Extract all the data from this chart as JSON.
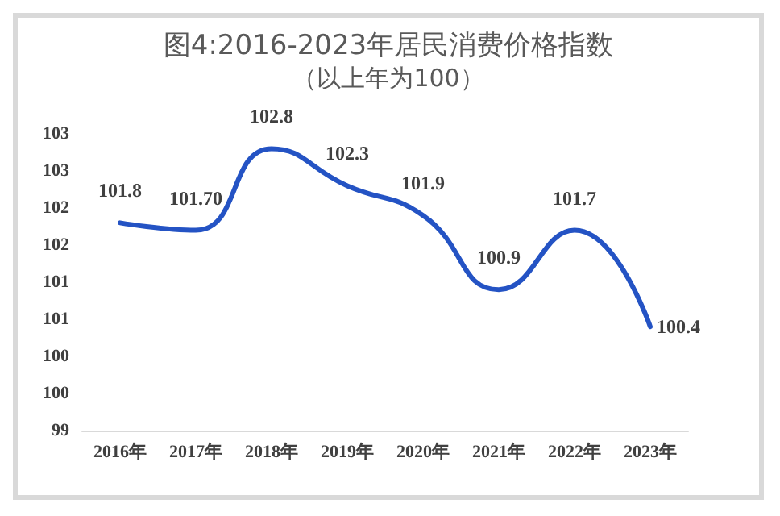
{
  "chart_data": {
    "type": "line",
    "title": "图4:2016-2023年居民消费价格指数",
    "subtitle": "（以上年为100）",
    "categories": [
      "2016年",
      "2017年",
      "2018年",
      "2019年",
      "2020年",
      "2021年",
      "2022年",
      "2023年"
    ],
    "series": [
      {
        "color": "#2453c4",
        "values": [
          101.8,
          101.7,
          102.8,
          102.3,
          101.9,
          100.9,
          101.7,
          100.4
        ],
        "value_labels": [
          "101.8",
          "101.70",
          "102.8",
          "102.3",
          "101.9",
          "100.9",
          "101.7",
          "100.4"
        ]
      }
    ],
    "ylim": [
      99,
      103
    ],
    "yticks": [
      99,
      {
        "value": 99.5,
        "label": "100"
      },
      100,
      {
        "value": 100.5,
        "label": "101"
      },
      101,
      {
        "value": 101.5,
        "label": "102"
      },
      102,
      {
        "value": 102.5,
        "label": "103"
      },
      103
    ],
    "grid": false,
    "marker": "none",
    "line_style": "solid"
  }
}
